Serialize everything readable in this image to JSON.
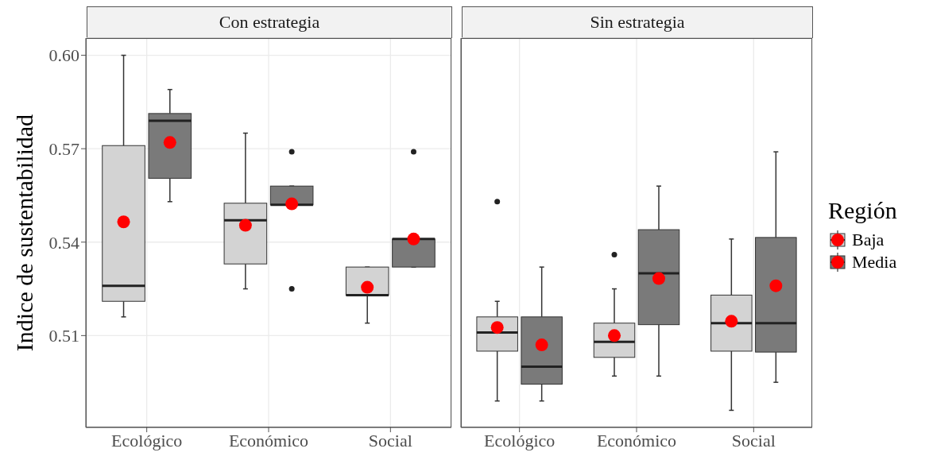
{
  "chart_data": [
    {
      "type": "box",
      "title": "Con estrategia",
      "ylabel": "Indice de sustentabilidad",
      "categories": [
        "Ecológico",
        "Económico",
        "Social"
      ],
      "ylim": [
        0.4805,
        0.6055
      ],
      "yticks": [
        0.51,
        0.54,
        0.57,
        {
          "value": 0.6,
          "label": "0.60"
        }
      ],
      "grid": true,
      "series": [
        {
          "color": "#d3d3d3",
          "boxes": [
            {
              "low": 0.516,
              "q1": 0.521,
              "median": 0.526,
              "q3": 0.571,
              "high": 0.6,
              "mean": 0.5465
            },
            {
              "low": 0.525,
              "q1": 0.533,
              "median": 0.547,
              "q3": 0.5525,
              "high": 0.575,
              "mean": 0.5454
            },
            {
              "low": 0.514,
              "q1": 0.523,
              "median": 0.523,
              "q3": 0.532,
              "high": 0.532,
              "mean": 0.5255
            }
          ]
        },
        {
          "color": "#7a7a7a",
          "boxes": [
            {
              "low": 0.553,
              "q1": 0.5605,
              "median": 0.579,
              "q3": 0.5813,
              "high": 0.589,
              "mean": 0.572
            },
            {
              "low": 0.552,
              "q1": 0.552,
              "median": 0.552,
              "q3": 0.558,
              "high": 0.558,
              "mean": 0.5523,
              "outliers": [
                0.569,
                0.525
              ]
            },
            {
              "low": 0.532,
              "q1": 0.532,
              "median": 0.541,
              "q3": 0.541,
              "high": 0.541,
              "mean": 0.541,
              "outliers": [
                0.569
              ]
            }
          ]
        }
      ]
    },
    {
      "type": "box",
      "title": "Sin estrategia",
      "categories": [
        "Ecológico",
        "Económico",
        "Social"
      ],
      "ylim": [
        0.4805,
        0.6055
      ],
      "yticks": [
        0.51,
        0.54,
        0.57,
        0.6
      ],
      "grid": true,
      "tick_labels": "x",
      "legend": "right",
      "legend_title": "Región",
      "series": [
        {
          "name": "Baja",
          "color": "#d3d3d3",
          "boxes": [
            {
              "low": 0.489,
              "q1": 0.505,
              "median": 0.511,
              "q3": 0.516,
              "high": 0.521,
              "mean": 0.5126,
              "outliers": [
                0.553
              ]
            },
            {
              "low": 0.497,
              "q1": 0.503,
              "median": 0.508,
              "q3": 0.514,
              "high": 0.525,
              "mean": 0.51,
              "outliers": [
                0.536
              ]
            },
            {
              "low": 0.486,
              "q1": 0.505,
              "median": 0.514,
              "q3": 0.523,
              "high": 0.541,
              "mean": 0.5146
            }
          ]
        },
        {
          "name": "Media",
          "color": "#7a7a7a",
          "boxes": [
            {
              "low": 0.489,
              "q1": 0.4944,
              "median": 0.5,
              "q3": 0.516,
              "high": 0.532,
              "mean": 0.507
            },
            {
              "low": 0.497,
              "q1": 0.5135,
              "median": 0.53,
              "q3": 0.544,
              "high": 0.558,
              "mean": 0.5283
            },
            {
              "low": 0.495,
              "q1": 0.5047,
              "median": 0.514,
              "q3": 0.5415,
              "high": 0.569,
              "mean": 0.526
            }
          ]
        }
      ]
    }
  ]
}
